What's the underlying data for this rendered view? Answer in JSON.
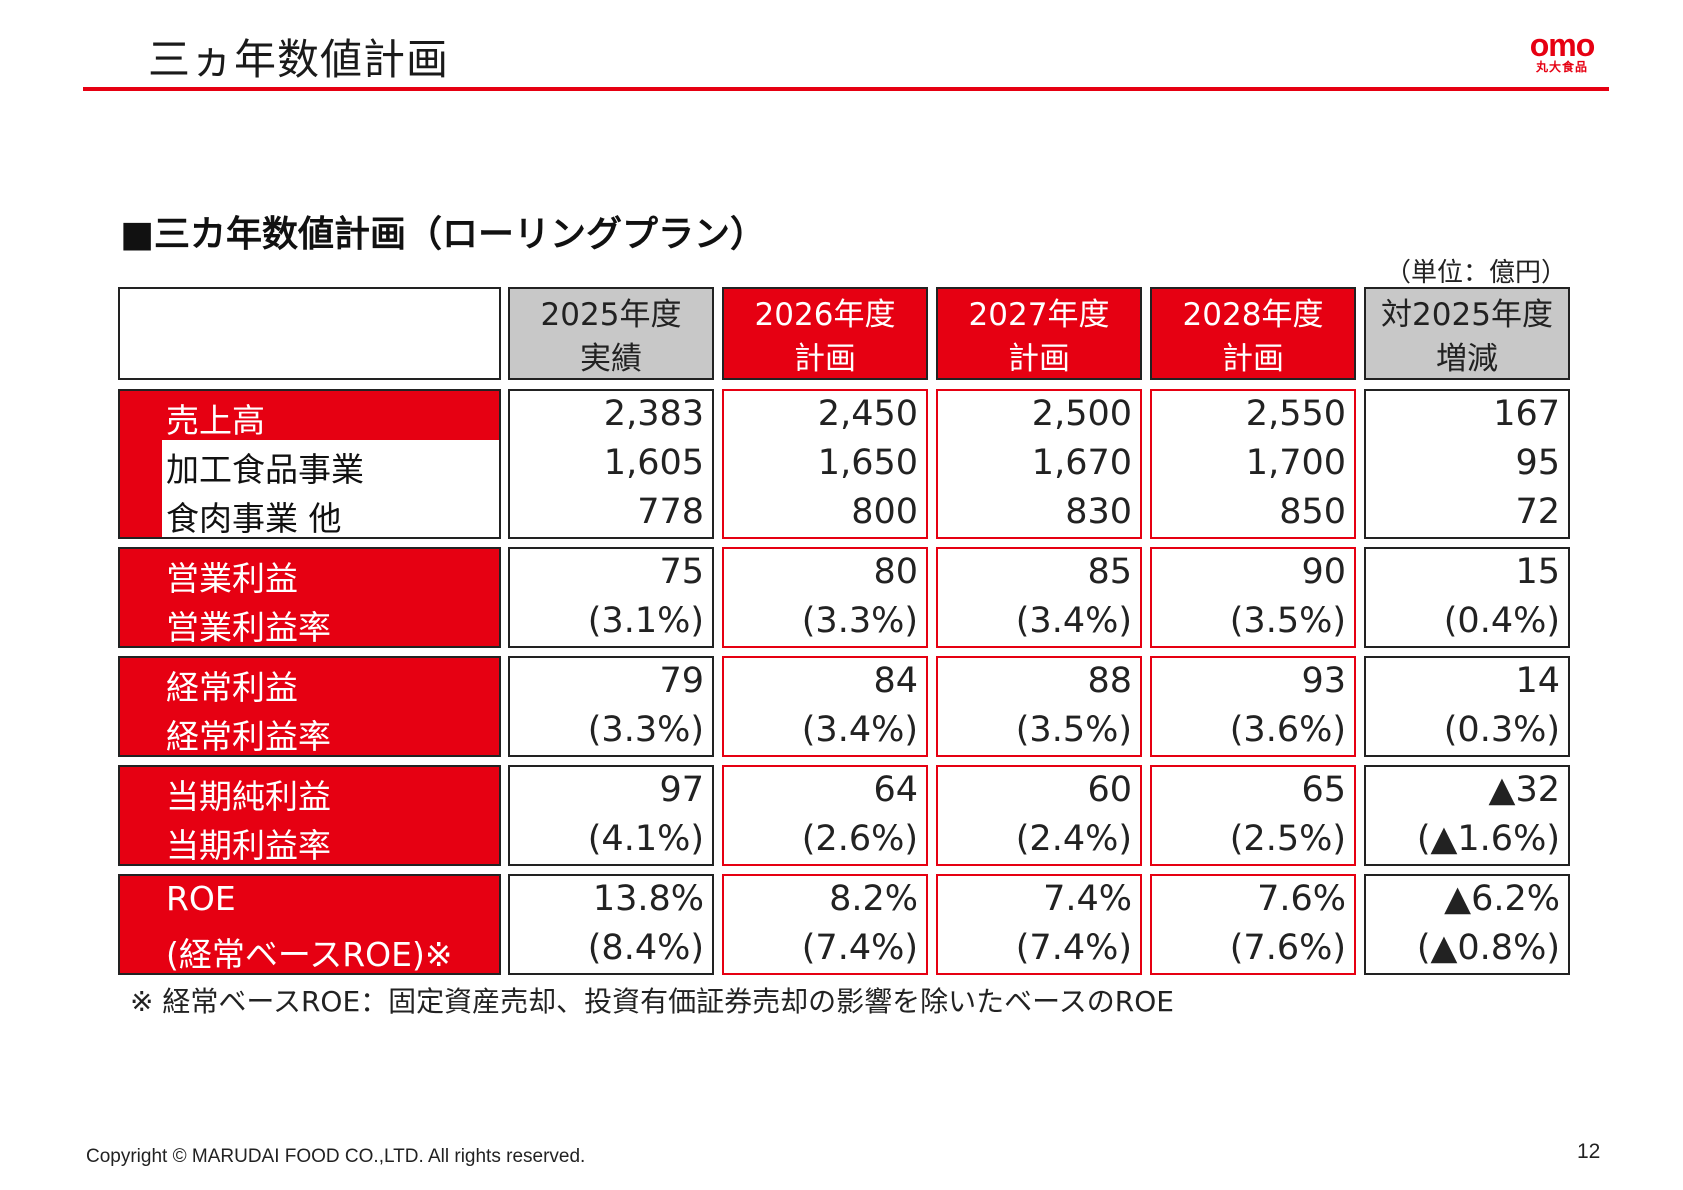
{
  "page_title": "三ヵ年数値計画",
  "logo": {
    "mark": "omo",
    "sub": "丸大食品"
  },
  "section_heading": "■三カ年数値計画（ローリングプラン）",
  "unit_label": "（単位：億円）",
  "columns": [
    {
      "line1": "2025年度",
      "line2": "実績"
    },
    {
      "line1": "2026年度",
      "line2": "計画"
    },
    {
      "line1": "2027年度",
      "line2": "計画"
    },
    {
      "line1": "2028年度",
      "line2": "計画"
    },
    {
      "line1": "対2025年度",
      "line2": "増減"
    }
  ],
  "groups": [
    {
      "labels": [
        "売上高",
        "加工食品事業",
        "食肉事業 他"
      ],
      "cols": [
        [
          "2,383",
          "1,605",
          "778"
        ],
        [
          "2,450",
          "1,650",
          "800"
        ],
        [
          "2,500",
          "1,670",
          "830"
        ],
        [
          "2,550",
          "1,700",
          "850"
        ],
        [
          "167",
          "95",
          "72"
        ]
      ]
    },
    {
      "labels": [
        "営業利益",
        "営業利益率"
      ],
      "cols": [
        [
          "75",
          "(3.1%)"
        ],
        [
          "80",
          "(3.3%)"
        ],
        [
          "85",
          "(3.4%)"
        ],
        [
          "90",
          "(3.5%)"
        ],
        [
          "15",
          "(0.4%)"
        ]
      ]
    },
    {
      "labels": [
        "経常利益",
        "経常利益率"
      ],
      "cols": [
        [
          "79",
          "(3.3%)"
        ],
        [
          "84",
          "(3.4%)"
        ],
        [
          "88",
          "(3.5%)"
        ],
        [
          "93",
          "(3.6%)"
        ],
        [
          "14",
          "(0.3%)"
        ]
      ]
    },
    {
      "labels": [
        "当期純利益",
        "当期利益率"
      ],
      "cols": [
        [
          "97",
          "(4.1%)"
        ],
        [
          "64",
          "(2.6%)"
        ],
        [
          "60",
          "(2.4%)"
        ],
        [
          "65",
          "(2.5%)"
        ],
        [
          "▲32",
          "(▲1.6%)"
        ]
      ]
    },
    {
      "labels": [
        "ROE",
        "(経常ベースROE)※"
      ],
      "cols": [
        [
          "13.8%",
          "(8.4%)"
        ],
        [
          "8.2%",
          "(7.4%)"
        ],
        [
          "7.4%",
          "(7.4%)"
        ],
        [
          "7.6%",
          "(7.6%)"
        ],
        [
          "▲6.2%",
          "(▲0.8%)"
        ]
      ]
    }
  ],
  "footnote": "※ 経常ベースROE：固定資産売却、投資有価証券売却の影響を除いたベースのROE",
  "copyright": "Copyright © MARUDAI FOOD CO.,LTD. All rights reserved.",
  "page_number": "12",
  "colors": {
    "accent_red": "#e60012",
    "header_gray": "#c8c8c8"
  }
}
